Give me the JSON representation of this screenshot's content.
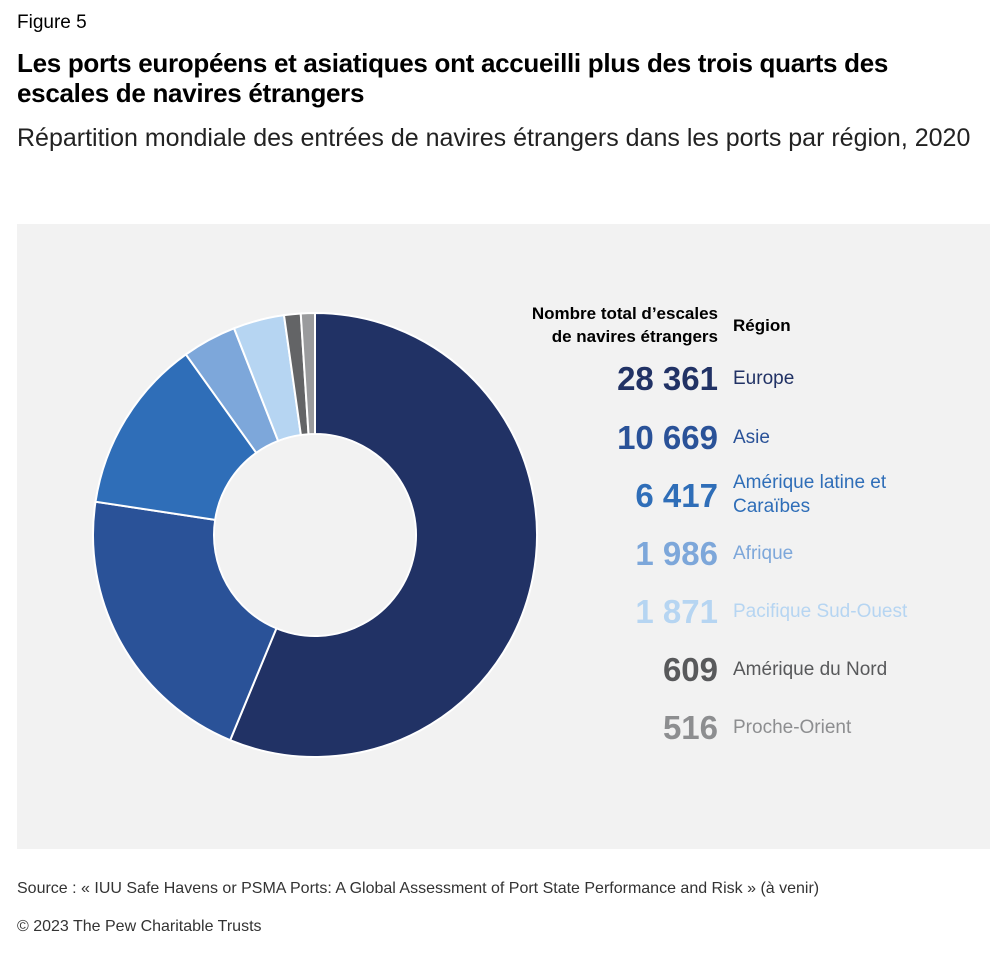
{
  "figure_label": "Figure 5",
  "title": "Les ports européens et asiatiques ont accueilli plus des trois quarts des escales de navires étrangers",
  "subtitle": "Répartition mondiale des entrées de navires étrangers dans les ports par région, 2020",
  "columns": {
    "total": "Nombre total d’escales de navires étrangers",
    "region": "Région"
  },
  "chart_data": {
    "type": "pie",
    "donut": true,
    "series": [
      {
        "name": "Europe",
        "value": 28361,
        "display": "28 361",
        "color": "#213265",
        "label_color": "#213265"
      },
      {
        "name": "Asie",
        "value": 10669,
        "display": "10 669",
        "color": "#2a5298",
        "label_color": "#2a5298"
      },
      {
        "name": "Amérique latine et Caraïbes",
        "value": 6417,
        "display": "6 417",
        "color": "#2f6eb8",
        "label_color": "#2f6eb8"
      },
      {
        "name": "Afrique",
        "value": 1986,
        "display": "1 986",
        "color": "#7da7da",
        "label_color": "#7da7da"
      },
      {
        "name": "Pacifique Sud-Ouest",
        "value": 1871,
        "display": "1 871",
        "color": "#b6d5f2",
        "label_color": "#b6d5f2"
      },
      {
        "name": "Amérique du Nord",
        "value": 609,
        "display": "609",
        "color": "#636466",
        "label_color": "#58595b"
      },
      {
        "name": "Proche-Orient",
        "value": 516,
        "display": "516",
        "color": "#9a9b9d",
        "label_color": "#8d8e90"
      }
    ]
  },
  "source": "Source : « IUU Safe Havens or PSMA Ports: A Global Assessment of Port State Performance and Risk » (à venir)",
  "copyright": "© 2023 The Pew Charitable Trusts"
}
